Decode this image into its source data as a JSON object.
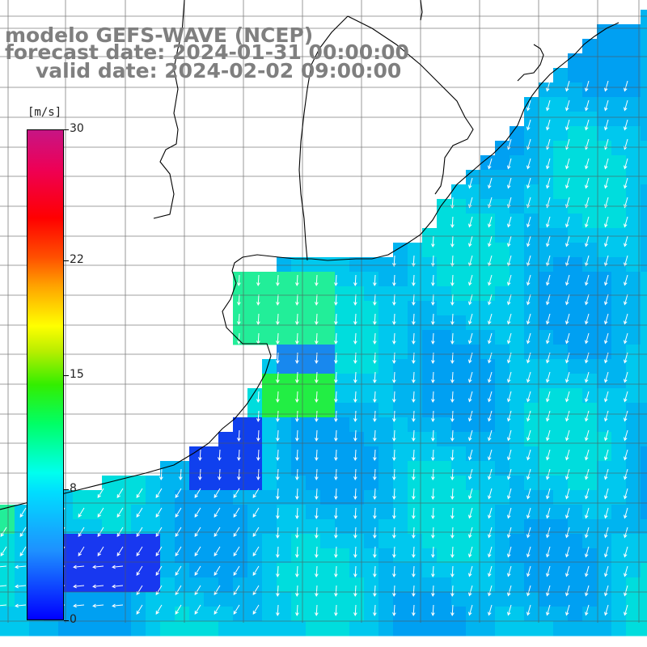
{
  "map": {
    "title_line1": "modelo GEFS-WAVE (NCEP)",
    "title_line2": "forecast date: 2024-01-31 00:00:00",
    "title_line3": "valid date: 2024-02-02 09:00:00",
    "variable": "wind speed and direction (vectors)",
    "colorbar": {
      "units": "[m/s]",
      "ticks": [
        {
          "value": 30,
          "label": "30"
        },
        {
          "value": 22,
          "label": "22"
        },
        {
          "value": 15,
          "label": "15"
        },
        {
          "value": 8,
          "label": "8"
        },
        {
          "value": 0,
          "label": "0"
        }
      ],
      "colors": [
        "#0000ff",
        "#1e90ff",
        "#00ddff",
        "#00ffee",
        "#00ff66",
        "#33ee00",
        "#ffff00",
        "#ffa500",
        "#ff0000",
        "#c71585"
      ]
    },
    "land_color": "#ffffff",
    "coastline_color": "#000000",
    "grid_color": "#555555",
    "vector_color": "#ffffff"
  }
}
